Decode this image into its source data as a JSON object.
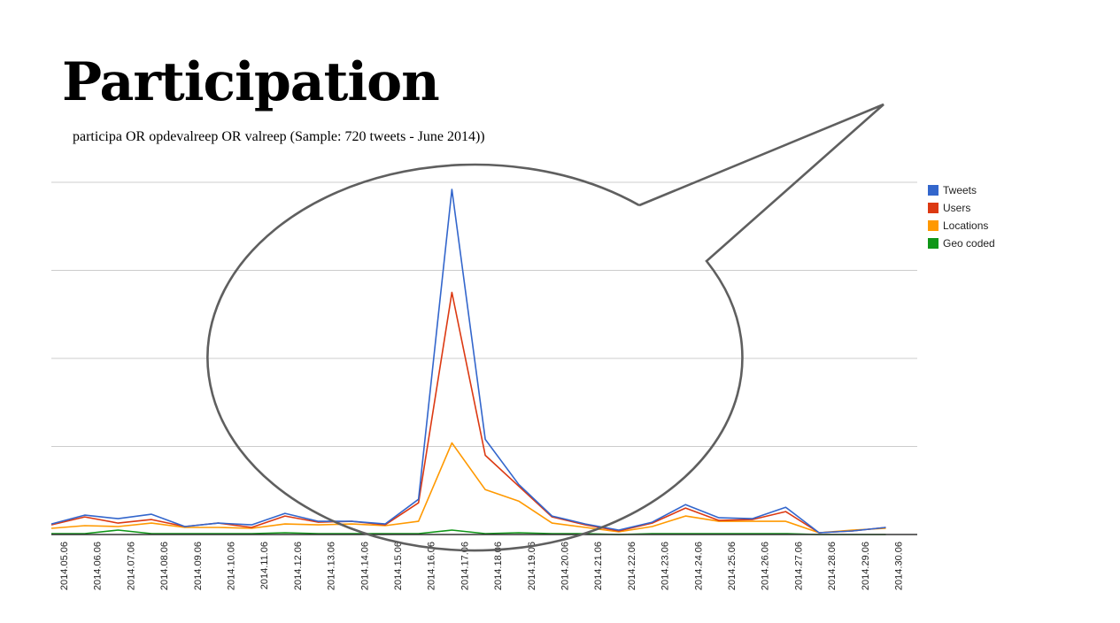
{
  "slide": {
    "title": "Participation",
    "subtitle": "participa OR opdevalreep OR valreep (Sample: 720 tweets - June 2014))"
  },
  "chart_data": {
    "type": "line",
    "title": "",
    "xlabel": "",
    "ylabel": "",
    "ylim": [
      0,
      400
    ],
    "grid": true,
    "legend_position": "right",
    "categories": [
      "2014.05.06",
      "2014.06.06",
      "2014.07.06",
      "2014.08.06",
      "2014.09.06",
      "2014.10.06",
      "2014.11.06",
      "2014.12.06",
      "2014.13.06",
      "2014.14.06",
      "2014.15.06",
      "2014.16.06",
      "2014.17.06",
      "2014.18.06",
      "2014.19.06",
      "2014.20.06",
      "2014.21.06",
      "2014.22.06",
      "2014.23.06",
      "2014.24.06",
      "2014.25.06",
      "2014.26.06",
      "2014.27.06",
      "2014.28.06",
      "2014.29.06",
      "2014.30.06"
    ],
    "series": [
      {
        "name": "Tweets",
        "color": "#3366cc",
        "values": [
          12,
          22,
          18,
          23,
          9,
          13,
          11,
          24,
          15,
          15,
          12,
          40,
          392,
          108,
          57,
          21,
          12,
          5,
          14,
          34,
          19,
          18,
          31,
          2,
          4,
          8
        ]
      },
      {
        "name": "Users",
        "color": "#dc3912",
        "values": [
          11,
          20,
          13,
          17,
          9,
          13,
          8,
          21,
          14,
          15,
          11,
          36,
          275,
          90,
          55,
          20,
          11,
          4,
          13,
          30,
          16,
          17,
          26,
          2,
          4,
          8
        ]
      },
      {
        "name": "Locations",
        "color": "#ff9900",
        "values": [
          7,
          10,
          9,
          13,
          8,
          8,
          7,
          12,
          11,
          12,
          10,
          15,
          104,
          51,
          38,
          13,
          8,
          3,
          9,
          21,
          15,
          15,
          15,
          2,
          5,
          7
        ]
      },
      {
        "name": "Geo coded",
        "color": "#109618",
        "values": [
          1,
          1,
          5,
          1,
          1,
          1,
          1,
          2,
          1,
          1,
          1,
          1,
          5,
          1,
          2,
          1,
          1,
          0,
          1,
          1,
          1,
          1,
          1,
          0,
          0,
          0
        ]
      }
    ]
  },
  "annotation": {
    "shape": "speech-bubble"
  }
}
